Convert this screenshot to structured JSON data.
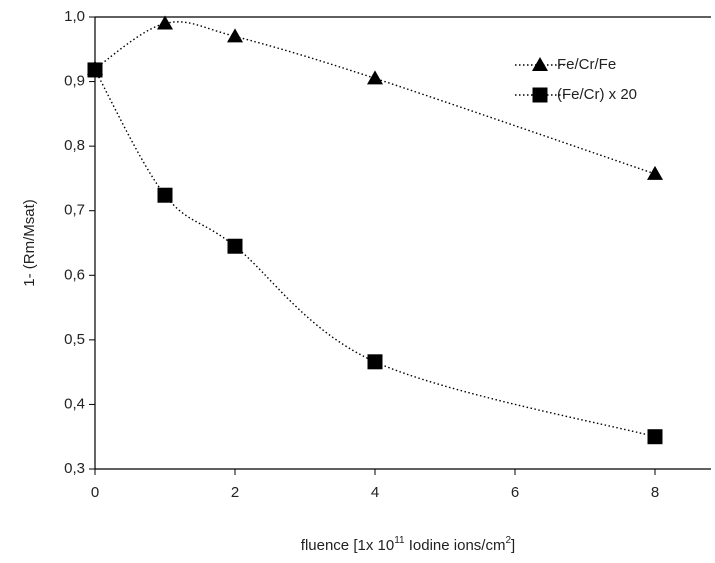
{
  "chart_data": {
    "type": "line",
    "y_label": "1- (Rm/Msat)",
    "x_label": [
      "fluence [1x 10",
      "11",
      " Iodine ions/cm",
      "2",
      "]"
    ],
    "x": [
      0,
      1,
      2,
      4,
      8
    ],
    "series": [
      {
        "name": "Fe/Cr/Fe",
        "color": "#000000",
        "marker": "triangle",
        "values": [
          0.92,
          0.99,
          0.97,
          0.905,
          0.757
        ]
      },
      {
        "name": "(Fe/Cr) x 20",
        "color": "#000000",
        "marker": "square",
        "values": [
          0.918,
          0.724,
          0.645,
          0.466,
          0.35
        ]
      }
    ],
    "xlim": [
      0,
      8.8
    ],
    "xticks": [
      0,
      2,
      4,
      6,
      8
    ],
    "ylim": [
      0.3,
      1.0
    ],
    "yticks": [
      {
        "value": 0.3,
        "label": "0,3"
      },
      {
        "value": 0.4,
        "label": "0,4"
      },
      {
        "value": 0.5,
        "label": "0,5"
      },
      {
        "value": 0.6,
        "label": "0,6"
      },
      {
        "value": 0.7,
        "label": "0,7"
      },
      {
        "value": 0.8,
        "label": "0,8"
      },
      {
        "value": 0.9,
        "label": "0,9"
      },
      {
        "value": 1.0,
        "label": "1,0"
      }
    ],
    "legend": "upper right"
  }
}
